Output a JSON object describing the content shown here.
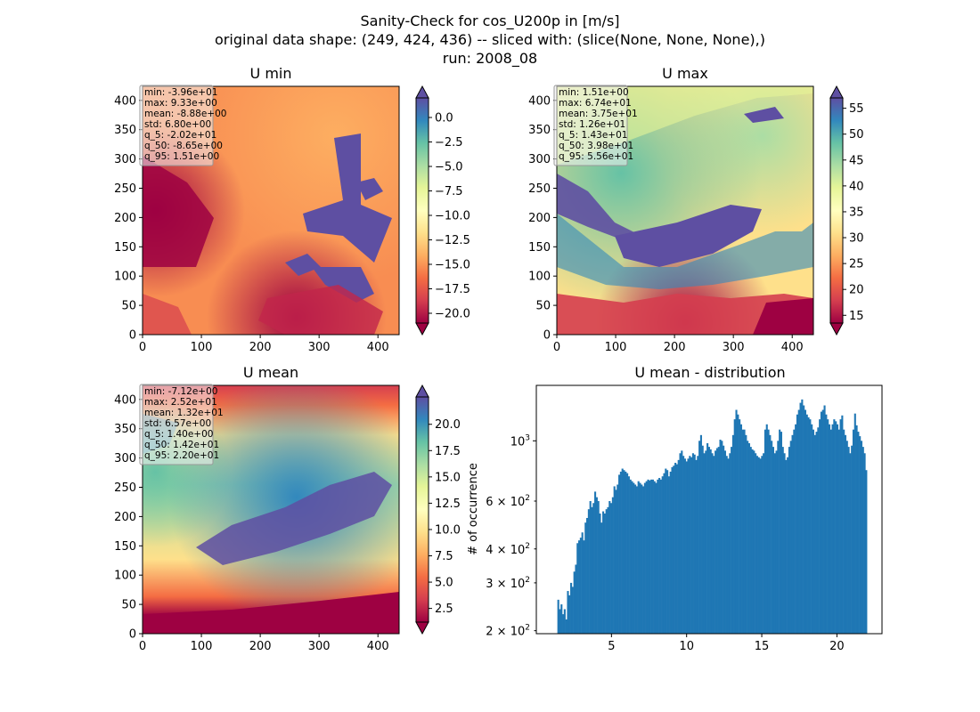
{
  "figure": {
    "title_lines": [
      "Sanity-Check for cos_U200p in [m/s]",
      "original data shape: (249, 424, 436) -- sliced with: (slice(None, None, None),)",
      "run: 2008_08"
    ]
  },
  "chart_data": [
    {
      "type": "heatmap",
      "title": "U min",
      "colormap": "Spectral",
      "xlim": [
        0,
        436
      ],
      "ylim": [
        0,
        424
      ],
      "xticks": [
        0,
        100,
        200,
        300,
        400
      ],
      "yticks": [
        0,
        50,
        100,
        150,
        200,
        250,
        300,
        350,
        400
      ],
      "colorbar": {
        "range": [
          -21,
          2
        ],
        "ticks": [
          "0.0",
          "−2.5",
          "−5.0",
          "−7.5",
          "−10.0",
          "−12.5",
          "−15.0",
          "−17.5",
          "−20.0"
        ],
        "tick_values": [
          0,
          -2.5,
          -5,
          -7.5,
          -10,
          -12.5,
          -15,
          -17.5,
          -20
        ],
        "extend": "both"
      },
      "stats": [
        "min: -3.96e+01",
        "max: 9.33e+00",
        "mean: -8.88e+00",
        "std: 6.80e+00",
        "q_5: -2.02e+01",
        "q_50: -8.65e+00",
        "q_95: 1.51e+00"
      ]
    },
    {
      "type": "heatmap",
      "title": "U max",
      "colormap": "Spectral",
      "xlim": [
        0,
        436
      ],
      "ylim": [
        0,
        424
      ],
      "xticks": [
        0,
        100,
        200,
        300,
        400
      ],
      "yticks": [
        0,
        50,
        100,
        150,
        200,
        250,
        300,
        350,
        400
      ],
      "colorbar": {
        "range": [
          13.5,
          57
        ],
        "ticks": [
          "55",
          "50",
          "45",
          "40",
          "35",
          "30",
          "25",
          "20",
          "15"
        ],
        "tick_values": [
          55,
          50,
          45,
          40,
          35,
          30,
          25,
          20,
          15
        ],
        "extend": "both"
      },
      "stats": [
        "min: 1.51e+00",
        "max: 6.74e+01",
        "mean: 3.75e+01",
        "std: 1.26e+01",
        "q_5: 1.43e+01",
        "q_50: 3.98e+01",
        "q_95: 5.56e+01"
      ]
    },
    {
      "type": "heatmap",
      "title": "U mean",
      "colormap": "Spectral",
      "xlim": [
        0,
        436
      ],
      "ylim": [
        0,
        424
      ],
      "xticks": [
        0,
        100,
        200,
        300,
        400
      ],
      "yticks": [
        0,
        50,
        100,
        150,
        200,
        250,
        300,
        350,
        400
      ],
      "colorbar": {
        "range": [
          1.2,
          22.6
        ],
        "ticks": [
          "20.0",
          "17.5",
          "15.0",
          "12.5",
          "10.0",
          "7.5",
          "5.0",
          "2.5"
        ],
        "tick_values": [
          20,
          17.5,
          15,
          12.5,
          10,
          7.5,
          5,
          2.5
        ],
        "extend": "both"
      },
      "stats": [
        "min: -7.12e+00",
        "max: 2.52e+01",
        "mean: 1.32e+01",
        "std: 6.57e+00",
        "q_5: 1.40e+00",
        "q_50: 1.42e+01",
        "q_95: 2.20e+01"
      ]
    },
    {
      "type": "bar",
      "title": "U mean - distribution",
      "ylabel": "# of occurrence",
      "yscale": "log",
      "xlim": [
        0,
        23
      ],
      "ylim": [
        195,
        1600
      ],
      "xticks": [
        5,
        10,
        15,
        20
      ],
      "yticks_major": [
        {
          "value": 1000,
          "base": "10",
          "exp": "3"
        }
      ],
      "yticks_minor": [
        {
          "value": 200,
          "mant": "2",
          "base": "10",
          "exp": "2"
        },
        {
          "value": 300,
          "mant": "3",
          "base": "10",
          "exp": "2"
        },
        {
          "value": 400,
          "mant": "4",
          "base": "10",
          "exp": "2"
        },
        {
          "value": 600,
          "mant": "6",
          "base": "10",
          "exp": "2"
        }
      ],
      "color": "#1f77b4",
      "bins": {
        "start": 1.4,
        "end": 22.0
      },
      "values": [
        260,
        240,
        250,
        230,
        240,
        220,
        280,
        270,
        300,
        290,
        330,
        350,
        420,
        430,
        440,
        460,
        430,
        500,
        520,
        560,
        600,
        570,
        590,
        650,
        620,
        600,
        540,
        500,
        550,
        540,
        560,
        570,
        600,
        590,
        620,
        680,
        660,
        690,
        750,
        770,
        790,
        780,
        770,
        760,
        740,
        720,
        710,
        700,
        690,
        680,
        710,
        700,
        690,
        680,
        700,
        710,
        720,
        715,
        720,
        720,
        710,
        700,
        720,
        730,
        720,
        740,
        760,
        790,
        780,
        740,
        770,
        800,
        810,
        830,
        820,
        850,
        900,
        920,
        880,
        860,
        840,
        860,
        880,
        870,
        900,
        890,
        850,
        880,
        1000,
        1050,
        960,
        900,
        920,
        980,
        950,
        930,
        900,
        880,
        920,
        940,
        950,
        1010,
        1000,
        960,
        920,
        880,
        860,
        900,
        950,
        1050,
        1200,
        1300,
        1250,
        1200,
        1150,
        1100,
        1100,
        1050,
        1000,
        980,
        950,
        930,
        920,
        900,
        880,
        870,
        860,
        880,
        900,
        1100,
        1150,
        1100,
        1050,
        1000,
        950,
        900,
        920,
        1000,
        1100,
        1080,
        950,
        900,
        850,
        870,
        950,
        1000,
        1050,
        1100,
        1150,
        1250,
        1300,
        1380,
        1420,
        1350,
        1300,
        1250,
        1220,
        1200,
        1150,
        1100,
        1050,
        1080,
        1120,
        1200,
        1280,
        1300,
        1350,
        1250,
        1200,
        1150,
        1100,
        1150,
        1200,
        1180,
        1150,
        1100,
        1200,
        1240,
        1100,
        1050,
        1000,
        950,
        900,
        960,
        1100,
        1260,
        1140,
        1080,
        1040,
        1000,
        950,
        900,
        780
      ]
    }
  ]
}
